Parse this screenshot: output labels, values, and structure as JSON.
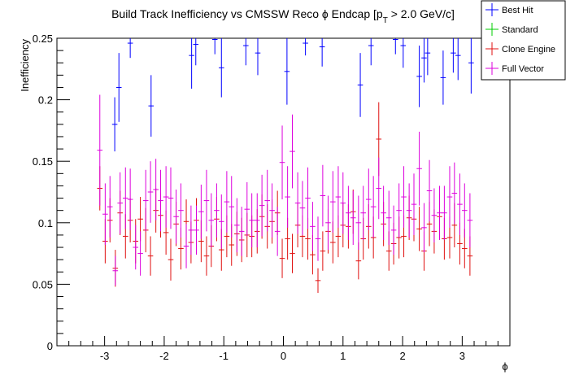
{
  "chart_data": {
    "type": "scatter",
    "title": "Build Track Inefficiency vs CMSSW Reco",
    "title_phi": "ϕ",
    "title_tail": "Endcap [p",
    "title_sub": "T",
    "title_end": "> 2.0 GeV/c]",
    "xlabel": "ϕ",
    "ylabel": "Inefficiency",
    "xlim": [
      -3.8,
      3.8
    ],
    "ylim": [
      0,
      0.25
    ],
    "xticks": [
      -3,
      -2,
      -1,
      0,
      1,
      2,
      3
    ],
    "xtick_labels": [
      "-3",
      "-2",
      "-1",
      "0",
      "1",
      "2",
      "3"
    ],
    "yticks": [
      0,
      0.05,
      0.1,
      0.15,
      0.2,
      0.25
    ],
    "ytick_labels": [
      "0",
      "0.05",
      "0.1",
      "0.15",
      "0.2",
      "0.25"
    ],
    "legend_position": "top-right",
    "series": [
      {
        "name": "Best Hit",
        "color": "#0000ff",
        "points": [
          {
            "x": -2.83,
            "y": 0.18,
            "err": 0.022
          },
          {
            "x": -2.76,
            "y": 0.21,
            "err": 0.028
          },
          {
            "x": -2.57,
            "y": 0.246,
            "err": 0.012
          },
          {
            "x": -2.22,
            "y": 0.195,
            "err": 0.025
          },
          {
            "x": -1.54,
            "y": 0.236,
            "err": 0.027
          },
          {
            "x": -1.47,
            "y": 0.245,
            "err": 0.017
          },
          {
            "x": -1.15,
            "y": 0.249,
            "err": 0.012
          },
          {
            "x": -1.04,
            "y": 0.226,
            "err": 0.024
          },
          {
            "x": -0.63,
            "y": 0.244,
            "err": 0.016
          },
          {
            "x": -0.43,
            "y": 0.238,
            "err": 0.018
          },
          {
            "x": 0.06,
            "y": 0.223,
            "err": 0.027
          },
          {
            "x": 0.37,
            "y": 0.246,
            "err": 0.01
          },
          {
            "x": 0.65,
            "y": 0.243,
            "err": 0.016
          },
          {
            "x": 1.29,
            "y": 0.212,
            "err": 0.026
          },
          {
            "x": 1.47,
            "y": 0.244,
            "err": 0.016
          },
          {
            "x": 1.88,
            "y": 0.249,
            "err": 0.012
          },
          {
            "x": 2.01,
            "y": 0.244,
            "err": 0.018
          },
          {
            "x": 2.28,
            "y": 0.219,
            "err": 0.025
          },
          {
            "x": 2.36,
            "y": 0.234,
            "err": 0.02
          },
          {
            "x": 2.42,
            "y": 0.238,
            "err": 0.018
          },
          {
            "x": 2.68,
            "y": 0.218,
            "err": 0.022
          },
          {
            "x": 2.85,
            "y": 0.238,
            "err": 0.016
          },
          {
            "x": 2.93,
            "y": 0.236,
            "err": 0.02
          },
          {
            "x": 3.15,
            "y": 0.23,
            "err": 0.025
          }
        ]
      },
      {
        "name": "Standard",
        "color": "#00cc00",
        "points": []
      },
      {
        "name": "Clone Engine",
        "color": "#e01010",
        "points": [
          {
            "x": -3.08,
            "y": 0.128,
            "err": 0.018
          },
          {
            "x": -2.99,
            "y": 0.085,
            "err": 0.018
          },
          {
            "x": -2.91,
            "y": 0.102,
            "err": 0.018
          },
          {
            "x": -2.82,
            "y": 0.063,
            "err": 0.015
          },
          {
            "x": -2.74,
            "y": 0.108,
            "err": 0.018
          },
          {
            "x": -2.65,
            "y": 0.089,
            "err": 0.018
          },
          {
            "x": -2.57,
            "y": 0.102,
            "err": 0.018
          },
          {
            "x": -2.48,
            "y": 0.085,
            "err": 0.018
          },
          {
            "x": -2.4,
            "y": 0.103,
            "err": 0.018
          },
          {
            "x": -2.31,
            "y": 0.094,
            "err": 0.018
          },
          {
            "x": -2.23,
            "y": 0.073,
            "err": 0.016
          },
          {
            "x": -2.14,
            "y": 0.11,
            "err": 0.018
          },
          {
            "x": -2.06,
            "y": 0.106,
            "err": 0.018
          },
          {
            "x": -1.97,
            "y": 0.092,
            "err": 0.018
          },
          {
            "x": -1.89,
            "y": 0.07,
            "err": 0.017
          },
          {
            "x": -1.8,
            "y": 0.099,
            "err": 0.018
          },
          {
            "x": -1.72,
            "y": 0.079,
            "err": 0.017
          },
          {
            "x": -1.63,
            "y": 0.101,
            "err": 0.018
          },
          {
            "x": -1.55,
            "y": 0.084,
            "err": 0.017
          },
          {
            "x": -1.46,
            "y": 0.102,
            "err": 0.018
          },
          {
            "x": -1.38,
            "y": 0.085,
            "err": 0.017
          },
          {
            "x": -1.29,
            "y": 0.073,
            "err": 0.016
          },
          {
            "x": -1.21,
            "y": 0.081,
            "err": 0.017
          },
          {
            "x": -1.12,
            "y": 0.103,
            "err": 0.018
          },
          {
            "x": -1.04,
            "y": 0.078,
            "err": 0.017
          },
          {
            "x": -0.95,
            "y": 0.089,
            "err": 0.017
          },
          {
            "x": -0.87,
            "y": 0.082,
            "err": 0.017
          },
          {
            "x": -0.78,
            "y": 0.091,
            "err": 0.018
          },
          {
            "x": -0.7,
            "y": 0.086,
            "err": 0.018
          },
          {
            "x": -0.61,
            "y": 0.09,
            "err": 0.018
          },
          {
            "x": -0.53,
            "y": 0.089,
            "err": 0.017
          },
          {
            "x": -0.44,
            "y": 0.093,
            "err": 0.018
          },
          {
            "x": -0.36,
            "y": 0.105,
            "err": 0.018
          },
          {
            "x": -0.27,
            "y": 0.097,
            "err": 0.018
          },
          {
            "x": -0.19,
            "y": 0.101,
            "err": 0.018
          },
          {
            "x": -0.1,
            "y": 0.108,
            "err": 0.018
          },
          {
            "x": -0.02,
            "y": 0.071,
            "err": 0.016
          },
          {
            "x": 0.07,
            "y": 0.087,
            "err": 0.017
          },
          {
            "x": 0.15,
            "y": 0.075,
            "err": 0.016
          },
          {
            "x": 0.24,
            "y": 0.098,
            "err": 0.018
          },
          {
            "x": 0.32,
            "y": 0.089,
            "err": 0.017
          },
          {
            "x": 0.41,
            "y": 0.087,
            "err": 0.017
          },
          {
            "x": 0.49,
            "y": 0.074,
            "err": 0.016
          },
          {
            "x": 0.58,
            "y": 0.053,
            "err": 0.01
          },
          {
            "x": 0.66,
            "y": 0.077,
            "err": 0.016
          },
          {
            "x": 0.75,
            "y": 0.093,
            "err": 0.018
          },
          {
            "x": 0.83,
            "y": 0.084,
            "err": 0.017
          },
          {
            "x": 0.92,
            "y": 0.089,
            "err": 0.017
          },
          {
            "x": 1.0,
            "y": 0.098,
            "err": 0.018
          },
          {
            "x": 1.09,
            "y": 0.097,
            "err": 0.018
          },
          {
            "x": 1.17,
            "y": 0.109,
            "err": 0.018
          },
          {
            "x": 1.26,
            "y": 0.069,
            "err": 0.015
          },
          {
            "x": 1.34,
            "y": 0.087,
            "err": 0.017
          },
          {
            "x": 1.43,
            "y": 0.097,
            "err": 0.018
          },
          {
            "x": 1.51,
            "y": 0.088,
            "err": 0.017
          },
          {
            "x": 1.6,
            "y": 0.168,
            "err": 0.03
          },
          {
            "x": 1.68,
            "y": 0.099,
            "err": 0.018
          },
          {
            "x": 1.77,
            "y": 0.077,
            "err": 0.016
          },
          {
            "x": 1.85,
            "y": 0.083,
            "err": 0.017
          },
          {
            "x": 1.94,
            "y": 0.088,
            "err": 0.017
          },
          {
            "x": 2.02,
            "y": 0.089,
            "err": 0.017
          },
          {
            "x": 2.11,
            "y": 0.104,
            "err": 0.018
          },
          {
            "x": 2.19,
            "y": 0.103,
            "err": 0.018
          },
          {
            "x": 2.28,
            "y": 0.095,
            "err": 0.018
          },
          {
            "x": 2.36,
            "y": 0.077,
            "err": 0.016
          },
          {
            "x": 2.45,
            "y": 0.099,
            "err": 0.018
          },
          {
            "x": 2.53,
            "y": 0.093,
            "err": 0.018
          },
          {
            "x": 2.62,
            "y": 0.105,
            "err": 0.018
          },
          {
            "x": 2.7,
            "y": 0.087,
            "err": 0.017
          },
          {
            "x": 2.79,
            "y": 0.088,
            "err": 0.017
          },
          {
            "x": 2.87,
            "y": 0.098,
            "err": 0.018
          },
          {
            "x": 2.96,
            "y": 0.083,
            "err": 0.017
          },
          {
            "x": 3.04,
            "y": 0.079,
            "err": 0.016
          },
          {
            "x": 3.13,
            "y": 0.073,
            "err": 0.016
          }
        ]
      },
      {
        "name": "Full Vector",
        "color": "#dd00dd",
        "points": [
          {
            "x": -3.08,
            "y": 0.159,
            "err": 0.045
          },
          {
            "x": -2.99,
            "y": 0.107,
            "err": 0.025
          },
          {
            "x": -2.91,
            "y": 0.113,
            "err": 0.025
          },
          {
            "x": -2.82,
            "y": 0.061,
            "err": 0.012
          },
          {
            "x": -2.74,
            "y": 0.116,
            "err": 0.025
          },
          {
            "x": -2.65,
            "y": 0.12,
            "err": 0.025
          },
          {
            "x": -2.57,
            "y": 0.119,
            "err": 0.025
          },
          {
            "x": -2.48,
            "y": 0.08,
            "err": 0.018
          },
          {
            "x": -2.4,
            "y": 0.075,
            "err": 0.018
          },
          {
            "x": -2.31,
            "y": 0.118,
            "err": 0.025
          },
          {
            "x": -2.23,
            "y": 0.125,
            "err": 0.025
          },
          {
            "x": -2.14,
            "y": 0.127,
            "err": 0.025
          },
          {
            "x": -2.06,
            "y": 0.118,
            "err": 0.025
          },
          {
            "x": -1.97,
            "y": 0.121,
            "err": 0.025
          },
          {
            "x": -1.89,
            "y": 0.12,
            "err": 0.025
          },
          {
            "x": -1.8,
            "y": 0.105,
            "err": 0.022
          },
          {
            "x": -1.72,
            "y": 0.11,
            "err": 0.022
          },
          {
            "x": -1.63,
            "y": 0.081,
            "err": 0.018
          },
          {
            "x": -1.55,
            "y": 0.094,
            "err": 0.02
          },
          {
            "x": -1.46,
            "y": 0.094,
            "err": 0.02
          },
          {
            "x": -1.38,
            "y": 0.109,
            "err": 0.022
          },
          {
            "x": -1.29,
            "y": 0.118,
            "err": 0.025
          },
          {
            "x": -1.21,
            "y": 0.102,
            "err": 0.022
          },
          {
            "x": -1.12,
            "y": 0.11,
            "err": 0.022
          },
          {
            "x": -1.04,
            "y": 0.101,
            "err": 0.022
          },
          {
            "x": -0.95,
            "y": 0.117,
            "err": 0.025
          },
          {
            "x": -0.87,
            "y": 0.113,
            "err": 0.025
          },
          {
            "x": -0.78,
            "y": 0.098,
            "err": 0.022
          },
          {
            "x": -0.7,
            "y": 0.093,
            "err": 0.02
          },
          {
            "x": -0.61,
            "y": 0.111,
            "err": 0.022
          },
          {
            "x": -0.53,
            "y": 0.102,
            "err": 0.022
          },
          {
            "x": -0.44,
            "y": 0.102,
            "err": 0.022
          },
          {
            "x": -0.36,
            "y": 0.114,
            "err": 0.025
          },
          {
            "x": -0.27,
            "y": 0.118,
            "err": 0.025
          },
          {
            "x": -0.19,
            "y": 0.11,
            "err": 0.022
          },
          {
            "x": -0.1,
            "y": 0.093,
            "err": 0.02
          },
          {
            "x": -0.02,
            "y": 0.149,
            "err": 0.03
          },
          {
            "x": 0.07,
            "y": 0.121,
            "err": 0.025
          },
          {
            "x": 0.15,
            "y": 0.158,
            "err": 0.03
          },
          {
            "x": 0.24,
            "y": 0.116,
            "err": 0.025
          },
          {
            "x": 0.32,
            "y": 0.112,
            "err": 0.022
          },
          {
            "x": 0.41,
            "y": 0.12,
            "err": 0.025
          },
          {
            "x": 0.49,
            "y": 0.097,
            "err": 0.02
          },
          {
            "x": 0.58,
            "y": 0.087,
            "err": 0.018
          },
          {
            "x": 0.66,
            "y": 0.122,
            "err": 0.025
          },
          {
            "x": 0.75,
            "y": 0.1,
            "err": 0.022
          },
          {
            "x": 0.83,
            "y": 0.117,
            "err": 0.025
          },
          {
            "x": 0.92,
            "y": 0.121,
            "err": 0.025
          },
          {
            "x": 1.0,
            "y": 0.116,
            "err": 0.025
          },
          {
            "x": 1.09,
            "y": 0.108,
            "err": 0.022
          },
          {
            "x": 1.17,
            "y": 0.104,
            "err": 0.022
          },
          {
            "x": 1.26,
            "y": 0.1,
            "err": 0.022
          },
          {
            "x": 1.34,
            "y": 0.108,
            "err": 0.022
          },
          {
            "x": 1.43,
            "y": 0.119,
            "err": 0.025
          },
          {
            "x": 1.51,
            "y": 0.113,
            "err": 0.025
          },
          {
            "x": 1.6,
            "y": 0.128,
            "err": 0.025
          },
          {
            "x": 1.68,
            "y": 0.108,
            "err": 0.022
          },
          {
            "x": 1.77,
            "y": 0.104,
            "err": 0.022
          },
          {
            "x": 1.85,
            "y": 0.094,
            "err": 0.02
          },
          {
            "x": 1.94,
            "y": 0.11,
            "err": 0.022
          },
          {
            "x": 2.02,
            "y": 0.121,
            "err": 0.025
          },
          {
            "x": 2.11,
            "y": 0.11,
            "err": 0.022
          },
          {
            "x": 2.19,
            "y": 0.115,
            "err": 0.025
          },
          {
            "x": 2.28,
            "y": 0.144,
            "err": 0.03
          },
          {
            "x": 2.36,
            "y": 0.096,
            "err": 0.02
          },
          {
            "x": 2.45,
            "y": 0.126,
            "err": 0.025
          },
          {
            "x": 2.53,
            "y": 0.106,
            "err": 0.022
          },
          {
            "x": 2.62,
            "y": 0.108,
            "err": 0.022
          },
          {
            "x": 2.7,
            "y": 0.108,
            "err": 0.022
          },
          {
            "x": 2.79,
            "y": 0.121,
            "err": 0.025
          },
          {
            "x": 2.87,
            "y": 0.124,
            "err": 0.025
          },
          {
            "x": 2.96,
            "y": 0.115,
            "err": 0.025
          },
          {
            "x": 3.04,
            "y": 0.11,
            "err": 0.022
          },
          {
            "x": 3.13,
            "y": 0.102,
            "err": 0.022
          }
        ]
      }
    ]
  }
}
